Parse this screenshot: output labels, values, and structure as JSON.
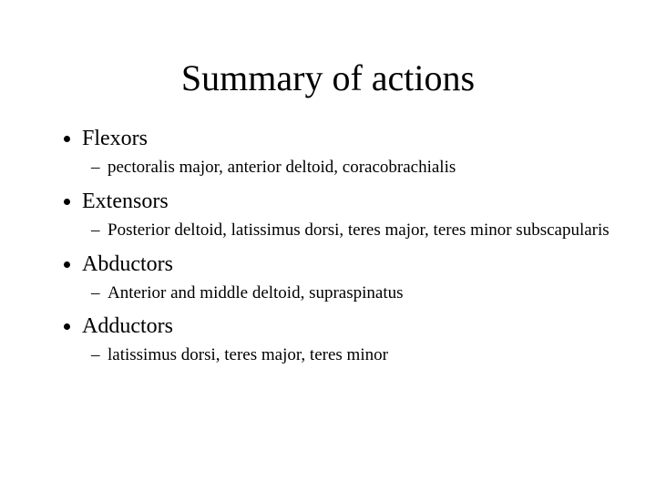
{
  "title": "Summary of actions",
  "sections": [
    {
      "heading": "Flexors",
      "details": "pectoralis major, anterior deltoid, coracobrachialis"
    },
    {
      "heading": "Extensors",
      "details": "Posterior deltoid, latissimus dorsi, teres major, teres minor subscapularis"
    },
    {
      "heading": "Abductors",
      "details": "Anterior and middle deltoid, supraspinatus"
    },
    {
      "heading": "Adductors",
      "details": "latissimus dorsi, teres major, teres minor"
    }
  ],
  "style": {
    "background_color": "#ffffff",
    "text_color": "#000000",
    "font_family": "Times New Roman",
    "title_fontsize": 40,
    "level1_fontsize": 24,
    "level2_fontsize": 19,
    "level1_bullet": "disc",
    "level2_bullet": "en-dash"
  }
}
